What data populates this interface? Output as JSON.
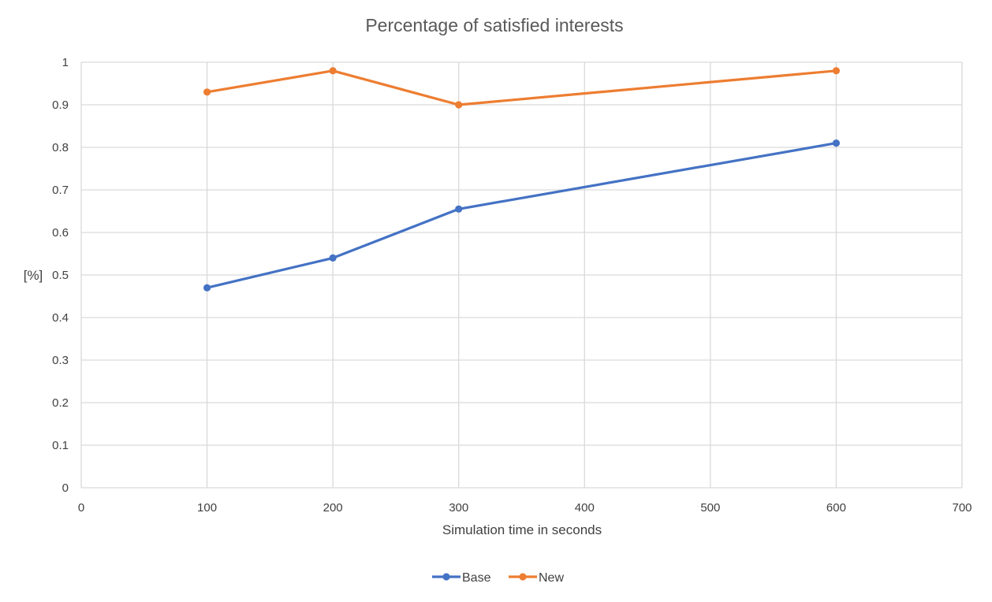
{
  "chart_data": {
    "type": "line",
    "title": "Percentage of satisfied interests",
    "xlabel": "Simulation time in seconds",
    "ylabel": "[%]",
    "xlim": [
      0,
      700
    ],
    "ylim": [
      0,
      1
    ],
    "x_ticks": [
      "0",
      "100",
      "200",
      "300",
      "400",
      "500",
      "600",
      "700"
    ],
    "y_ticks": [
      "0",
      "0.1",
      "0.2",
      "0.3",
      "0.4",
      "0.5",
      "0.6",
      "0.7",
      "0.8",
      "0.9",
      "1"
    ],
    "x_tick_values": [
      0,
      100,
      200,
      300,
      400,
      500,
      600,
      700
    ],
    "y_tick_values": [
      0,
      0.1,
      0.2,
      0.3,
      0.4,
      0.5,
      0.6,
      0.7,
      0.8,
      0.9,
      1
    ],
    "grid": true,
    "legend_position": "bottom",
    "series": [
      {
        "name": "Base",
        "color": "#4472c4",
        "points": [
          {
            "x": 100,
            "y": 0.47
          },
          {
            "x": 200,
            "y": 0.54
          },
          {
            "x": 300,
            "y": 0.655
          },
          {
            "x": 600,
            "y": 0.81
          }
        ]
      },
      {
        "name": "New",
        "color": "#ed7d31",
        "points": [
          {
            "x": 100,
            "y": 0.93
          },
          {
            "x": 200,
            "y": 0.98
          },
          {
            "x": 300,
            "y": 0.9
          },
          {
            "x": 600,
            "y": 0.98
          }
        ]
      }
    ]
  }
}
